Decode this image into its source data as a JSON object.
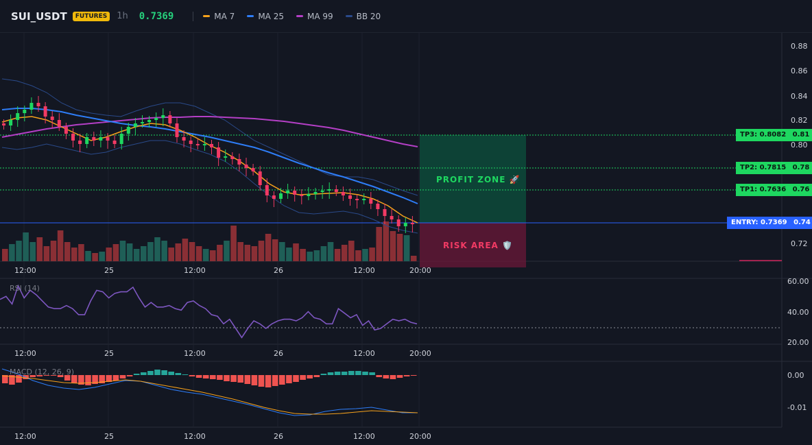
{
  "header": {
    "symbol": "SUI_USDT",
    "badge": "FUTURES",
    "interval": "1h",
    "last_price": "0.7369",
    "indicators": [
      {
        "label": "MA 7",
        "color": "#f7a21b"
      },
      {
        "label": "MA 25",
        "color": "#2e7df7"
      },
      {
        "label": "MA 99",
        "color": "#b43fc6"
      },
      {
        "label": "BB 20",
        "color": "#2a4a8a"
      }
    ]
  },
  "price_axis": {
    "ticks": [
      "0.88",
      "0.86",
      "0.84",
      "0.82",
      "0.81",
      "0.80",
      "0.78",
      "0.76",
      "0.74",
      "0.72"
    ]
  },
  "levels": {
    "tp3": {
      "label": "TP3: 0.8082",
      "axis": "0.81",
      "value": 0.8082
    },
    "tp2": {
      "label": "TP2: 0.7815",
      "axis": "0.78",
      "value": 0.7815
    },
    "tp1": {
      "label": "TP1: 0.7636",
      "axis": "0.76",
      "value": 0.7636
    },
    "entry": {
      "label": "ENTRY: 0.7369",
      "axis": "0.74",
      "value": 0.7369
    }
  },
  "zones": {
    "profit": "PROFIT ZONE 🚀",
    "risk": "RISK AREA 🛡️"
  },
  "time_axis": {
    "labels": [
      "12:00",
      "25",
      "12:00",
      "26",
      "12:00",
      "20:00"
    ]
  },
  "rsi": {
    "title": "RSI (14)",
    "ticks": [
      "60.00",
      "40.00",
      "20.00"
    ],
    "values": [
      48,
      50,
      45,
      57,
      49,
      54,
      51,
      47,
      43,
      42,
      42,
      44,
      42,
      38,
      38,
      47,
      54,
      53,
      49,
      52,
      53,
      53,
      56,
      49,
      43,
      46,
      43,
      43,
      44,
      42,
      41,
      46,
      47,
      44,
      42,
      38,
      37,
      32,
      35,
      29,
      23,
      29,
      34,
      32,
      29,
      32,
      34,
      35,
      35,
      34,
      36,
      40,
      36,
      35,
      32,
      32,
      42,
      39,
      36,
      38,
      31,
      34,
      28,
      29,
      32,
      35,
      34,
      35,
      33,
      32
    ]
  },
  "macd": {
    "title": "MACD (12, 26, 9)",
    "ticks": [
      "0.00",
      "-0.01"
    ]
  },
  "colors": {
    "up": "#26a69a",
    "down": "#ef5350",
    "up_bright": "#1ed760",
    "down_bright": "#f23a64",
    "entry": "#2962ff",
    "tp": "#1ed760"
  }
}
